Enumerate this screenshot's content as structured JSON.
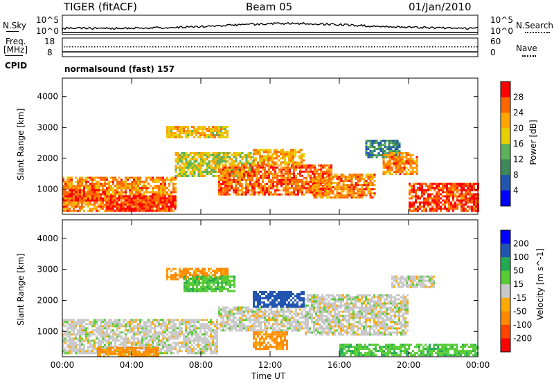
{
  "header": {
    "radar": "TIGER (fitACF)",
    "beam": "Beam 05",
    "date": "01/Jan/2010"
  },
  "top_panels": {
    "nsky_label": "N.Sky",
    "nsky_ticks": [
      "10^5",
      "10^0"
    ],
    "nsearch_label": "N.Search",
    "nsearch_ticks": [
      "10^5",
      "10^0"
    ],
    "freq_label": "Freq.",
    "freq_unit": "[MHz]",
    "freq_ticks": [
      "18",
      "8"
    ],
    "nave_label": "Nave",
    "nave_ticks": [
      "60",
      "0"
    ],
    "cpid_label": "CPID",
    "cpid_text": "normalsound (fast) 157"
  },
  "colors": {
    "power_scale": [
      "#0000ff",
      "#2255b0",
      "#3c8a5a",
      "#5bb25b",
      "#e6d000",
      "#ffa500",
      "#ff6600",
      "#ff0000"
    ],
    "velocity_scale": [
      "#ff0000",
      "#ff4400",
      "#ff8800",
      "#ffaa00",
      "#c8c8c8",
      "#55cc33",
      "#22aa55",
      "#2255b0",
      "#0000ff"
    ]
  },
  "chart_data": [
    {
      "type": "heatmap",
      "title": "Power",
      "ylabel": "Slant Range [km]",
      "ylim": [
        180,
        4600
      ],
      "y_ticks": [
        "1000",
        "2000",
        "3000",
        "4000"
      ],
      "x_ticks": [
        "00:00",
        "04:00",
        "08:00",
        "12:00",
        "16:00",
        "20:00",
        "00:00"
      ],
      "colorbar": {
        "label": "Power [dB]",
        "ticks": [
          "4",
          "8",
          "12",
          "16",
          "20",
          "24",
          "28"
        ],
        "range": [
          0,
          30
        ]
      },
      "regions": [
        {
          "t0": 0.0,
          "t1": 6.5,
          "r0": 300,
          "r1": 1400,
          "value": 24
        },
        {
          "t0": 2.5,
          "t1": 6.5,
          "r0": 300,
          "r1": 800,
          "value": 29
        },
        {
          "t0": 0.0,
          "t1": 2.5,
          "r0": 600,
          "r1": 1000,
          "value": 28
        },
        {
          "t0": 6.0,
          "t1": 9.5,
          "r0": 2700,
          "r1": 3050,
          "value": 20
        },
        {
          "t0": 6.5,
          "t1": 11.0,
          "r0": 1400,
          "r1": 2200,
          "value": 18
        },
        {
          "t0": 9.0,
          "t1": 15.5,
          "r0": 800,
          "r1": 1800,
          "value": 26
        },
        {
          "t0": 11.0,
          "t1": 14.0,
          "r0": 1800,
          "r1": 2300,
          "value": 22
        },
        {
          "t0": 14.5,
          "t1": 18.0,
          "r0": 700,
          "r1": 1500,
          "value": 24
        },
        {
          "t0": 17.5,
          "t1": 19.5,
          "r0": 2000,
          "r1": 2600,
          "value": 10
        },
        {
          "t0": 18.5,
          "t1": 20.5,
          "r0": 1500,
          "r1": 2200,
          "value": 24
        },
        {
          "t0": 20.0,
          "t1": 24.0,
          "r0": 300,
          "r1": 1200,
          "value": 28
        }
      ]
    },
    {
      "type": "heatmap",
      "title": "Velocity",
      "ylabel": "Slant Range [km]",
      "ylim": [
        180,
        4600
      ],
      "y_ticks": [
        "1000",
        "2000",
        "3000",
        "4000"
      ],
      "x_ticks": [
        "00:00",
        "04:00",
        "08:00",
        "12:00",
        "16:00",
        "20:00",
        "00:00"
      ],
      "xlabel": "Time UT",
      "colorbar": {
        "label": "Velocity [m s^-1]",
        "ticks": [
          "200",
          "100",
          "50",
          "15",
          "-15",
          "-50",
          "-100",
          "-200"
        ],
        "range": [
          -250,
          250
        ]
      },
      "regions": [
        {
          "t0": 0.0,
          "t1": 9.0,
          "r0": 300,
          "r1": 1400,
          "value": 0
        },
        {
          "t0": 2.0,
          "t1": 5.5,
          "r0": 200,
          "r1": 500,
          "value": -60
        },
        {
          "t0": 6.0,
          "t1": 9.5,
          "r0": 2700,
          "r1": 3050,
          "value": -60
        },
        {
          "t0": 7.0,
          "t1": 10.0,
          "r0": 2300,
          "r1": 2800,
          "value": 40
        },
        {
          "t0": 9.0,
          "t1": 14.0,
          "r0": 1000,
          "r1": 1800,
          "value": 0
        },
        {
          "t0": 11.0,
          "t1": 13.0,
          "r0": 400,
          "r1": 1000,
          "value": -60
        },
        {
          "t0": 11.0,
          "t1": 14.0,
          "r0": 1800,
          "r1": 2300,
          "value": 150
        },
        {
          "t0": 14.0,
          "t1": 20.0,
          "r0": 900,
          "r1": 2200,
          "value": 0
        },
        {
          "t0": 16.0,
          "t1": 24.0,
          "r0": 200,
          "r1": 600,
          "value": 40
        },
        {
          "t0": 19.0,
          "t1": 21.5,
          "r0": 2400,
          "r1": 2800,
          "value": 0
        }
      ]
    }
  ],
  "xlabel": "Time UT"
}
